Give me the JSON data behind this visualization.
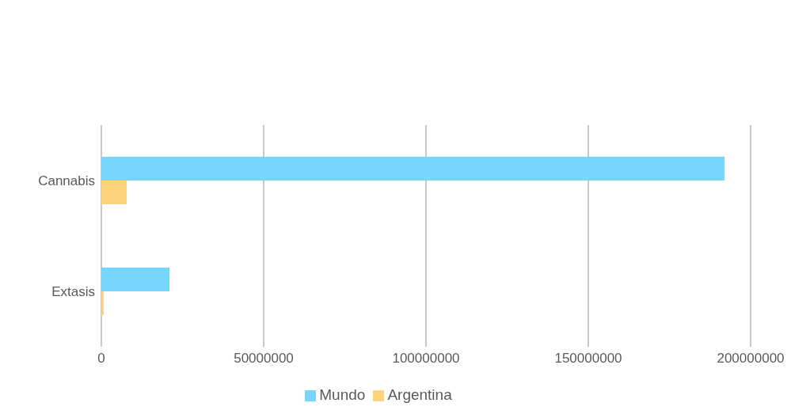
{
  "chart_data": {
    "type": "bar",
    "orientation": "horizontal",
    "categories": [
      "Cannabis",
      "Extasis"
    ],
    "series": [
      {
        "name": "Mundo",
        "color": "#75d7fd",
        "values": [
          192000000,
          21000000
        ]
      },
      {
        "name": "Argentina",
        "color": "#fed47b",
        "values": [
          7800000,
          700000
        ]
      }
    ],
    "xlim": [
      0,
      200000000
    ],
    "xticks": [
      0,
      50000000,
      100000000,
      150000000,
      200000000
    ],
    "grid": "x",
    "legend": "bottom"
  }
}
